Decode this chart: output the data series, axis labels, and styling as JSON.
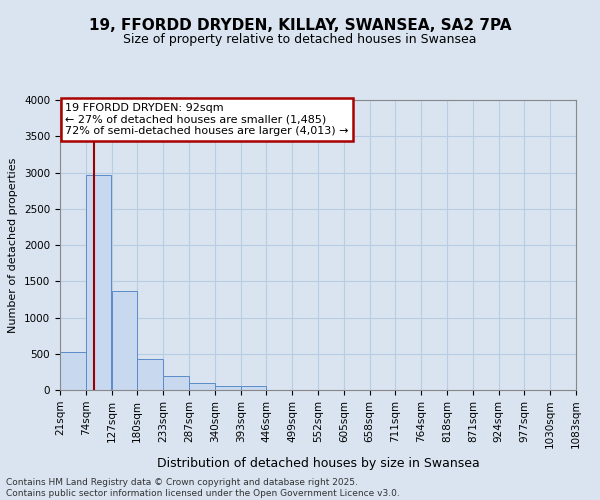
{
  "title1": "19, FFORDD DRYDEN, KILLAY, SWANSEA, SA2 7PA",
  "title2": "Size of property relative to detached houses in Swansea",
  "xlabel": "Distribution of detached houses by size in Swansea",
  "ylabel": "Number of detached properties",
  "footer1": "Contains HM Land Registry data © Crown copyright and database right 2025.",
  "footer2": "Contains public sector information licensed under the Open Government Licence v3.0.",
  "annotation_line1": "19 FFORDD DRYDEN: 92sqm",
  "annotation_line2": "← 27% of detached houses are smaller (1,485)",
  "annotation_line3": "72% of semi-detached houses are larger (4,013) →",
  "property_size": 92,
  "bins": [
    21,
    74,
    127,
    180,
    233,
    287,
    340,
    393,
    446,
    499,
    552,
    605,
    658,
    711,
    764,
    818,
    871,
    924,
    977,
    1030,
    1083
  ],
  "counts": [
    530,
    2970,
    1360,
    430,
    200,
    100,
    60,
    50,
    0,
    0,
    0,
    0,
    0,
    0,
    0,
    0,
    0,
    0,
    0,
    0
  ],
  "bar_color": "#c8d8ef",
  "bar_edge_color": "#5b8cc8",
  "line_color": "#990000",
  "annotation_box_edge": "#aa0000",
  "grid_color": "#b8cce4",
  "background_color": "#d9e4f0",
  "ylim": [
    0,
    4000
  ],
  "yticks": [
    0,
    500,
    1000,
    1500,
    2000,
    2500,
    3000,
    3500,
    4000
  ],
  "title1_fontsize": 11,
  "title2_fontsize": 9,
  "ylabel_fontsize": 8,
  "xlabel_fontsize": 9,
  "tick_fontsize": 7.5,
  "ann_fontsize": 8
}
